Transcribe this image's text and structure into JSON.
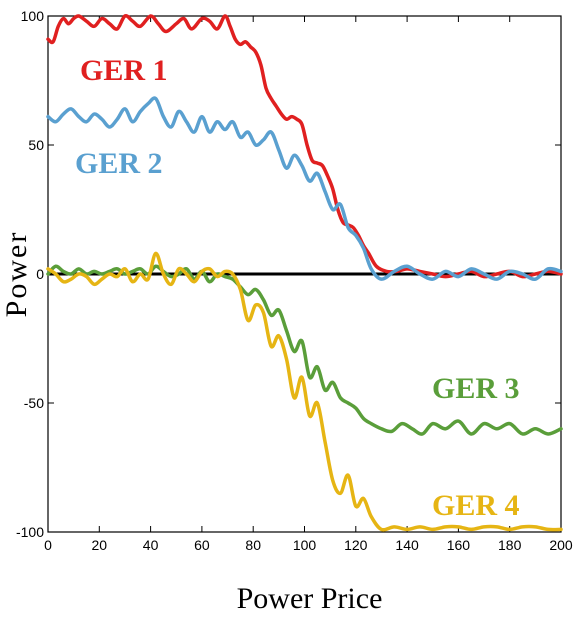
{
  "chart_data": {
    "type": "line",
    "xlabel": "Power Price",
    "ylabel": "Power",
    "xlim": [
      0,
      200
    ],
    "ylim": [
      -100,
      100
    ],
    "xticks": [
      0,
      20,
      40,
      60,
      80,
      100,
      120,
      140,
      160,
      180,
      200
    ],
    "yticks": [
      100,
      50,
      0,
      -50,
      -100
    ],
    "grid": false,
    "baseline": {
      "y": 0,
      "color": "#000000"
    },
    "series": [
      {
        "name": "GER 1",
        "color": "#e02020",
        "x": [
          0,
          2,
          4,
          6,
          8,
          10,
          12,
          15,
          18,
          21,
          24,
          27,
          30,
          33,
          36,
          40,
          43,
          46,
          50,
          53,
          56,
          60,
          63,
          66,
          69,
          71,
          73,
          75,
          77,
          79,
          81,
          83,
          85,
          87,
          89,
          91,
          93,
          95,
          97,
          99,
          101,
          103,
          105,
          107,
          109,
          111,
          113,
          115,
          117,
          119,
          121,
          123,
          125,
          128,
          132,
          136,
          140,
          145,
          150,
          155,
          160,
          165,
          170,
          175,
          180,
          185,
          190,
          195,
          200
        ],
        "values": [
          91,
          90,
          96,
          99,
          97,
          99,
          100,
          98,
          96,
          99,
          97,
          95,
          100,
          98,
          96,
          100,
          97,
          94,
          97,
          99,
          95,
          99,
          98,
          95,
          100,
          96,
          91,
          89,
          90,
          88,
          86,
          81,
          72,
          68,
          65,
          62,
          60,
          61,
          60,
          58,
          50,
          44,
          43,
          42,
          38,
          33,
          25,
          20,
          19,
          18,
          15,
          11,
          8,
          3,
          1,
          1,
          2,
          1,
          0,
          -1,
          0,
          1,
          -1,
          0,
          1,
          -1,
          0,
          1,
          0
        ]
      },
      {
        "name": "GER 2",
        "color": "#5aa0d0",
        "x": [
          0,
          3,
          6,
          9,
          12,
          15,
          18,
          21,
          24,
          27,
          30,
          33,
          36,
          39,
          42,
          45,
          48,
          51,
          54,
          57,
          60,
          63,
          66,
          69,
          72,
          75,
          78,
          81,
          84,
          87,
          90,
          93,
          96,
          99,
          102,
          105,
          108,
          111,
          114,
          117,
          120,
          123,
          126,
          130,
          135,
          140,
          145,
          150,
          155,
          160,
          165,
          170,
          175,
          180,
          185,
          190,
          195,
          200
        ],
        "values": [
          61,
          59,
          62,
          64,
          61,
          59,
          62,
          60,
          57,
          60,
          64,
          59,
          63,
          66,
          68,
          61,
          57,
          63,
          59,
          55,
          61,
          55,
          59,
          56,
          59,
          53,
          55,
          50,
          52,
          55,
          48,
          41,
          46,
          42,
          36,
          39,
          32,
          25,
          27,
          18,
          15,
          10,
          2,
          -2,
          1,
          3,
          0,
          -2,
          1,
          -1,
          2,
          0,
          -2,
          1,
          0,
          -2,
          2,
          1
        ]
      },
      {
        "name": "GER 3",
        "color": "#5a9e3a",
        "x": [
          0,
          3,
          6,
          9,
          12,
          15,
          18,
          21,
          24,
          27,
          30,
          33,
          36,
          39,
          42,
          45,
          48,
          51,
          54,
          57,
          60,
          63,
          66,
          69,
          72,
          75,
          78,
          81,
          84,
          87,
          90,
          93,
          96,
          99,
          102,
          105,
          108,
          111,
          114,
          117,
          120,
          123,
          126,
          130,
          134,
          138,
          142,
          146,
          150,
          155,
          160,
          165,
          170,
          175,
          180,
          185,
          190,
          195,
          200
        ],
        "values": [
          0,
          3,
          1,
          0,
          2,
          0,
          1,
          0,
          1,
          2,
          0,
          1,
          2,
          0,
          3,
          1,
          -1,
          0,
          2,
          -2,
          1,
          -3,
          0,
          -1,
          -2,
          -5,
          -8,
          -6,
          -10,
          -16,
          -14,
          -22,
          -30,
          -26,
          -40,
          -36,
          -45,
          -42,
          -48,
          -50,
          -52,
          -56,
          -58,
          -60,
          -61,
          -58,
          -60,
          -62,
          -58,
          -60,
          -57,
          -62,
          -58,
          -60,
          -58,
          -62,
          -60,
          -62,
          -60
        ]
      },
      {
        "name": "GER 4",
        "color": "#e6b514",
        "x": [
          0,
          3,
          6,
          9,
          12,
          15,
          18,
          21,
          24,
          27,
          30,
          33,
          36,
          39,
          42,
          45,
          48,
          51,
          54,
          57,
          60,
          63,
          66,
          69,
          72,
          75,
          78,
          81,
          84,
          87,
          90,
          93,
          96,
          99,
          102,
          105,
          108,
          111,
          114,
          117,
          120,
          123,
          126,
          130,
          135,
          140,
          145,
          150,
          155,
          160,
          165,
          170,
          175,
          180,
          185,
          190,
          195,
          200
        ],
        "values": [
          2,
          0,
          -3,
          -2,
          0,
          -1,
          -4,
          -2,
          0,
          -1,
          2,
          -3,
          0,
          -2,
          8,
          0,
          -4,
          2,
          0,
          -3,
          1,
          2,
          -1,
          1,
          0,
          -6,
          -18,
          -12,
          -15,
          -28,
          -24,
          -33,
          -48,
          -40,
          -55,
          -50,
          -65,
          -80,
          -85,
          -78,
          -90,
          -87,
          -94,
          -99,
          -98,
          -99,
          -98,
          -99,
          -98,
          -98,
          -99,
          -98,
          -98,
          -99,
          -98,
          -98,
          -99,
          -99
        ]
      }
    ],
    "annotations": [
      {
        "text": "GER 1",
        "series": 0,
        "color": "#e02020"
      },
      {
        "text": "GER 2",
        "series": 1,
        "color": "#5aa0d0"
      },
      {
        "text": "GER 3",
        "series": 2,
        "color": "#5a9e3a"
      },
      {
        "text": "GER 4",
        "series": 3,
        "color": "#e6b514"
      }
    ]
  }
}
